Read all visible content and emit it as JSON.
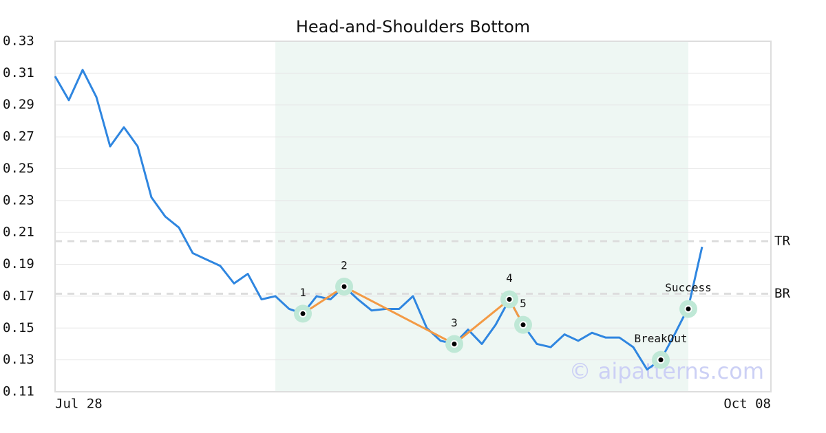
{
  "chart_data": {
    "type": "line",
    "title": "Head-and-Shoulders Bottom",
    "categories": [
      "Jul 28",
      null,
      null,
      null,
      null,
      null,
      null,
      null,
      null,
      null,
      null,
      null,
      null,
      null,
      null,
      null,
      null,
      null,
      null,
      null,
      null,
      null,
      null,
      null,
      null,
      null,
      null,
      null,
      null,
      null,
      null,
      null,
      null,
      null,
      null,
      null,
      null,
      null,
      null,
      null,
      null,
      null,
      null,
      null,
      null,
      null,
      null,
      null,
      null,
      null,
      null,
      null,
      "Oct 08"
    ],
    "series": [
      {
        "color": "#2f86e0",
        "values": [
          0.308,
          0.293,
          0.312,
          0.295,
          0.264,
          0.276,
          0.264,
          0.232,
          0.22,
          0.213,
          0.197,
          0.193,
          0.189,
          0.178,
          0.184,
          0.168,
          0.17,
          0.162,
          0.159,
          0.17,
          0.168,
          0.176,
          0.168,
          0.161,
          0.162,
          0.162,
          0.17,
          0.15,
          0.142,
          0.14,
          0.149,
          0.14,
          0.152,
          0.168,
          0.152,
          0.14,
          0.138,
          0.146,
          0.142,
          0.147,
          0.144,
          0.144,
          0.138,
          0.124,
          0.13,
          0.146,
          0.163,
          0.201,
          null,
          null,
          null,
          null,
          null
        ]
      }
    ],
    "ylim": [
      0.11,
      0.33
    ],
    "yticks": [
      0.11,
      0.13,
      0.15,
      0.17,
      0.19,
      0.21,
      0.23,
      0.25,
      0.27,
      0.29,
      0.31,
      0.33
    ],
    "grid": true,
    "highlight": [
      16,
      46
    ],
    "highlight_color": "#eef7f3",
    "pattern_color": "#f39a45",
    "pattern": [
      {
        "label": "1",
        "index": 18,
        "value": 0.159
      },
      {
        "label": "2",
        "index": 21,
        "value": 0.176
      },
      {
        "label": "3",
        "index": 29,
        "value": 0.14
      },
      {
        "label": "4",
        "index": 33,
        "value": 0.168
      },
      {
        "label": "5",
        "index": 34,
        "value": 0.152
      }
    ],
    "signals": [
      {
        "label": "BreakOut",
        "index": 44,
        "value": 0.13
      },
      {
        "label": "Success",
        "index": 46,
        "value": 0.162
      }
    ],
    "levels": [
      {
        "label": "TR",
        "value": 0.2045
      },
      {
        "label": "BR",
        "value": 0.1715
      }
    ],
    "watermark": "© aipatterns.com"
  }
}
